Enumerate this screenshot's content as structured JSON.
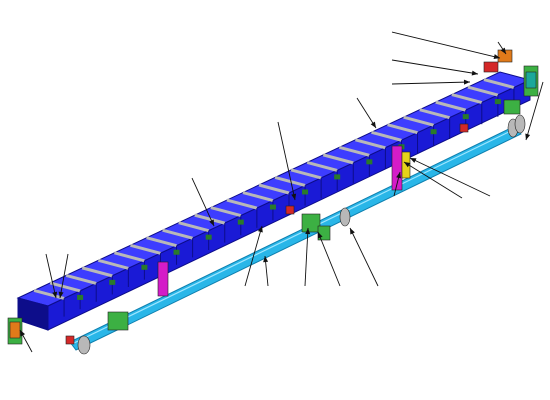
{
  "diagram": {
    "kind": "exploded-assembly-isometric",
    "labels": [],
    "colors": {
      "beam_blue": "#1a1ad6",
      "beam_dark": "#0d0d8a",
      "beam_top": "#3d3dff",
      "rod": "#29b6e8",
      "rod_dark": "#0e7fae",
      "bracket_green": "#3cb043",
      "bracket_magenta": "#d41cc8",
      "rib_gray": "#b8b8b8",
      "accent_orange": "#e07a1a",
      "accent_red": "#d42828",
      "leader": "#111111"
    },
    "callout_count": 17
  }
}
